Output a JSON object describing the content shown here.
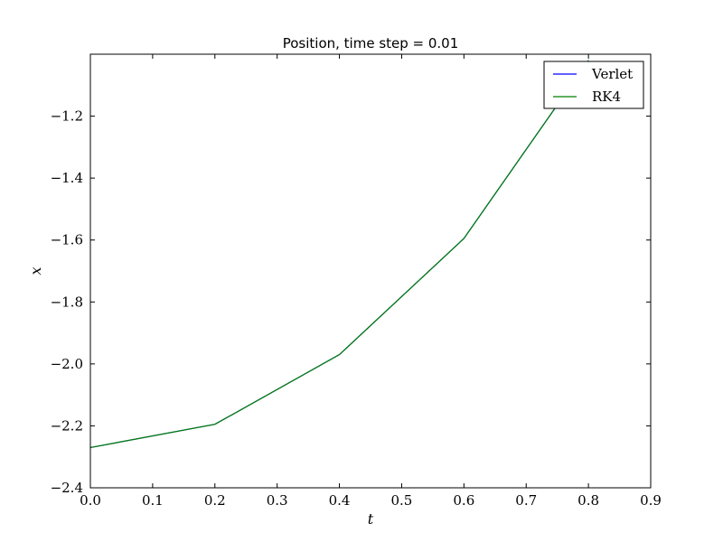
{
  "chart_data": {
    "type": "line",
    "title": "Position, time step = 0.01",
    "xlabel": "t",
    "ylabel": "x",
    "xlim": [
      0.0,
      0.9
    ],
    "ylim": [
      -2.4,
      -1.0
    ],
    "xticks": [
      "0.0",
      "0.1",
      "0.2",
      "0.3",
      "0.4",
      "0.5",
      "0.6",
      "0.7",
      "0.8",
      "0.9"
    ],
    "yticks": [
      "−2.4",
      "−2.2",
      "−2.0",
      "−1.8",
      "−1.6",
      "−1.4",
      "−1.2"
    ],
    "grid": false,
    "legend_position": "top-right",
    "series": [
      {
        "name": "Verlet",
        "color": "#0000ff",
        "x": [
          0.0,
          0.2,
          0.4,
          0.6,
          0.8
        ],
        "y": [
          -2.27,
          -2.195,
          -1.97,
          -1.595,
          -1.02
        ]
      },
      {
        "name": "RK4",
        "color": "#008000",
        "x": [
          0.0,
          0.2,
          0.4,
          0.6,
          0.8
        ],
        "y": [
          -2.27,
          -2.195,
          -1.97,
          -1.595,
          -1.02
        ]
      }
    ]
  }
}
